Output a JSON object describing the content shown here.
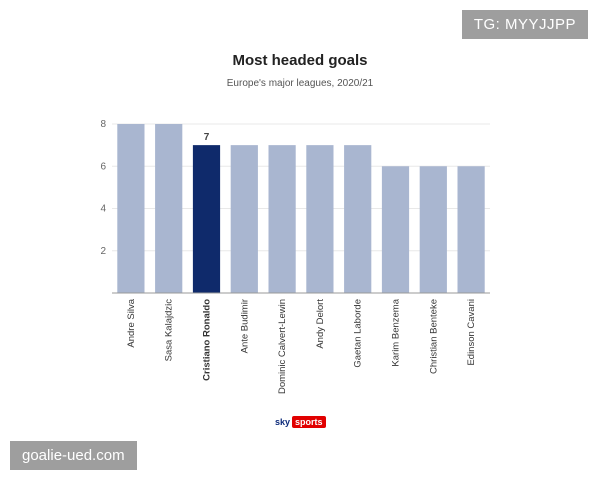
{
  "watermarks": {
    "top_right": "TG: MYYJJPP",
    "bottom_left": "goalie-ued.com"
  },
  "brand": {
    "part1": "sky",
    "part2": "sports"
  },
  "colors": {
    "bar": "#a9b6d0",
    "highlight": "#0f2a6b",
    "grid": "#e8e8e8",
    "axis": "#999999"
  },
  "chart_data": {
    "type": "bar",
    "title": "Most headed goals",
    "subtitle": "Europe's major leagues, 2020/21",
    "xlabel": "",
    "ylabel": "",
    "categories": [
      "Andre Silva",
      "Sasa Kalajdzic",
      "Cristiano Ronaldo",
      "Ante Budimir",
      "Dominic Calvert-Lewin",
      "Andy Delort",
      "Gaetan Laborde",
      "Karim Benzema",
      "Christian Benteke",
      "Edinson Cavani"
    ],
    "values": [
      8,
      8,
      7,
      7,
      7,
      7,
      7,
      6,
      6,
      6
    ],
    "highlight": "Cristiano Ronaldo",
    "data_labels": {
      "Cristiano Ronaldo": "7"
    },
    "ylim": [
      0,
      8
    ],
    "yticks": [
      2,
      4,
      6,
      8
    ],
    "grid": true,
    "legend": "none"
  }
}
